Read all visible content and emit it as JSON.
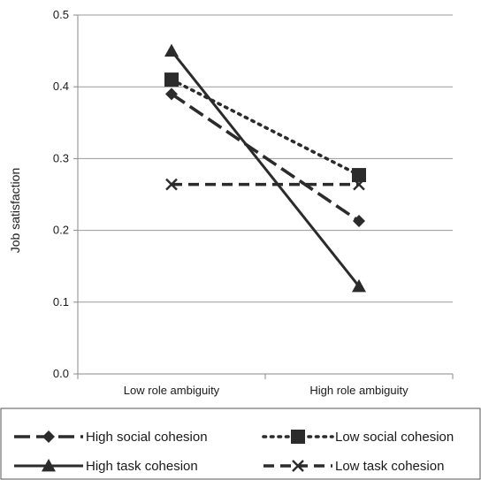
{
  "chart_data": {
    "type": "line",
    "title": "",
    "xlabel": "",
    "ylabel": "Job satisfaction",
    "categories": [
      "Low role ambiguity",
      "High role ambiguity"
    ],
    "ylim": [
      0,
      0.5
    ],
    "y_ticks": [
      "0.0",
      "0.1",
      "0.2",
      "0.3",
      "0.4",
      "0.5"
    ],
    "grid": true,
    "legend_position": "bottom",
    "series": [
      {
        "name": "High social cohesion",
        "values": [
          0.39,
          0.213
        ],
        "line": "long-dash",
        "marker": "diamond",
        "color": "#2b2b2b"
      },
      {
        "name": "Low social cohesion",
        "values": [
          0.41,
          0.277
        ],
        "line": "dotted",
        "marker": "square",
        "color": "#2b2b2b"
      },
      {
        "name": "High task cohesion",
        "values": [
          0.45,
          0.122
        ],
        "line": "solid",
        "marker": "triangle",
        "color": "#2b2b2b"
      },
      {
        "name": "Low task cohesion",
        "values": [
          0.264,
          0.264
        ],
        "line": "dashed",
        "marker": "x",
        "color": "#2b2b2b"
      }
    ]
  }
}
